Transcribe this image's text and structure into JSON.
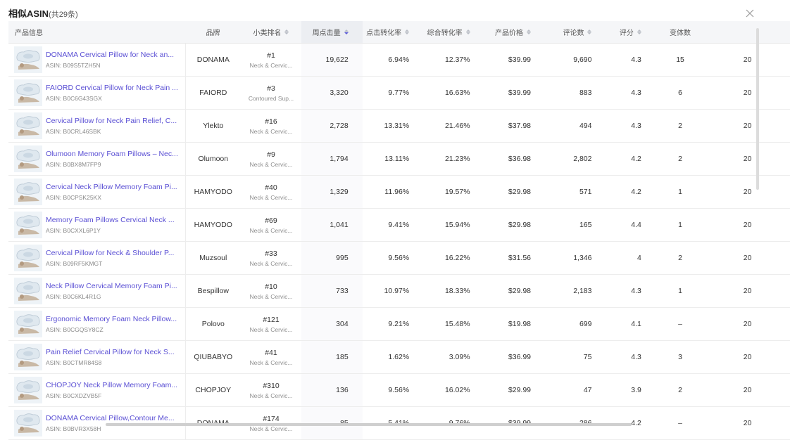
{
  "dialog": {
    "title": "相似ASIN",
    "count_text": "(共29条)",
    "close_icon": "close-icon"
  },
  "columns": {
    "product": "产品信息",
    "brand": "品牌",
    "rank": "小类排名",
    "weekly_clicks": "周点击量",
    "click_conv": "点击转化率",
    "total_conv": "综合转化率",
    "price": "产品价格",
    "reviews": "评论数",
    "rating": "评分",
    "variants": "变体数"
  },
  "sort": {
    "active_column": "weekly_clicks",
    "direction": "desc",
    "accent": "#5b5bd6"
  },
  "rows": [
    {
      "title": "DONAMA Cervical Pillow for Neck an...",
      "asin": "ASIN: B09S5TZH5N",
      "brand": "DONAMA",
      "rank": "#1",
      "category": "Neck & Cervic...",
      "clicks": "19,622",
      "click_conv": "6.94%",
      "total_conv": "12.37%",
      "price": "$39.99",
      "reviews": "9,690",
      "rating": "4.3",
      "variants": "15",
      "extra": "20"
    },
    {
      "title": "FAIORD Cervical Pillow for Neck Pain ...",
      "asin": "ASIN: B0C6G43SGX",
      "brand": "FAIORD",
      "rank": "#3",
      "category": "Contoured Sup...",
      "clicks": "3,320",
      "click_conv": "9.77%",
      "total_conv": "16.63%",
      "price": "$39.99",
      "reviews": "883",
      "rating": "4.3",
      "variants": "6",
      "extra": "20"
    },
    {
      "title": "Cervical Pillow for Neck Pain Relief, C...",
      "asin": "ASIN: B0CRL46SBK",
      "brand": "Ylekto",
      "rank": "#16",
      "category": "Neck & Cervic...",
      "clicks": "2,728",
      "click_conv": "13.31%",
      "total_conv": "21.46%",
      "price": "$37.98",
      "reviews": "494",
      "rating": "4.3",
      "variants": "2",
      "extra": "20"
    },
    {
      "title": "Olumoon Memory Foam Pillows – Nec...",
      "asin": "ASIN: B0BX8M7FP9",
      "brand": "Olumoon",
      "rank": "#9",
      "category": "Neck & Cervic...",
      "clicks": "1,794",
      "click_conv": "13.11%",
      "total_conv": "21.23%",
      "price": "$36.98",
      "reviews": "2,802",
      "rating": "4.2",
      "variants": "2",
      "extra": "20"
    },
    {
      "title": "Cervical Neck Pillow Memory Foam Pi...",
      "asin": "ASIN: B0CPSK25KX",
      "brand": "HAMYODO",
      "rank": "#40",
      "category": "Neck & Cervic...",
      "clicks": "1,329",
      "click_conv": "11.96%",
      "total_conv": "19.57%",
      "price": "$29.98",
      "reviews": "571",
      "rating": "4.2",
      "variants": "1",
      "extra": "20"
    },
    {
      "title": "Memory Foam Pillows Cervical Neck ...",
      "asin": "ASIN: B0CXXL6P1Y",
      "brand": "HAMYODO",
      "rank": "#69",
      "category": "Neck & Cervic...",
      "clicks": "1,041",
      "click_conv": "9.41%",
      "total_conv": "15.94%",
      "price": "$29.98",
      "reviews": "165",
      "rating": "4.4",
      "variants": "1",
      "extra": "20"
    },
    {
      "title": "Cervical Pillow for Neck & Shoulder P...",
      "asin": "ASIN: B09RF5KMGT",
      "brand": "Muzsoul",
      "rank": "#33",
      "category": "Neck & Cervic...",
      "clicks": "995",
      "click_conv": "9.56%",
      "total_conv": "16.22%",
      "price": "$31.56",
      "reviews": "1,346",
      "rating": "4",
      "variants": "2",
      "extra": "20"
    },
    {
      "title": "Neck Pillow Cervical Memory Foam Pi...",
      "asin": "ASIN: B0C6KL4R1G",
      "brand": "Bespillow",
      "rank": "#10",
      "category": "Neck & Cervic...",
      "clicks": "733",
      "click_conv": "10.97%",
      "total_conv": "18.33%",
      "price": "$29.98",
      "reviews": "2,183",
      "rating": "4.3",
      "variants": "1",
      "extra": "20"
    },
    {
      "title": "Ergonomic Memory Foam Neck Pillow...",
      "asin": "ASIN: B0CGQSY8CZ",
      "brand": "Polovo",
      "rank": "#121",
      "category": "Neck & Cervic...",
      "clicks": "304",
      "click_conv": "9.21%",
      "total_conv": "15.48%",
      "price": "$19.98",
      "reviews": "699",
      "rating": "4.1",
      "variants": "–",
      "extra": "20"
    },
    {
      "title": "Pain Relief Cervical Pillow for Neck S...",
      "asin": "ASIN: B0CTMR84S8",
      "brand": "QIUBABYO",
      "rank": "#41",
      "category": "Neck & Cervic...",
      "clicks": "185",
      "click_conv": "1.62%",
      "total_conv": "3.09%",
      "price": "$36.99",
      "reviews": "75",
      "rating": "4.3",
      "variants": "3",
      "extra": "20"
    },
    {
      "title": "CHOPJOY Neck Pillow Memory Foam...",
      "asin": "ASIN: B0CXDZVB5F",
      "brand": "CHOPJOY",
      "rank": "#310",
      "category": "Neck & Cervic...",
      "clicks": "136",
      "click_conv": "9.56%",
      "total_conv": "16.02%",
      "price": "$29.99",
      "reviews": "47",
      "rating": "3.9",
      "variants": "2",
      "extra": "20"
    },
    {
      "title": "DONAMA Cervical Pillow,Contour Me...",
      "asin": "ASIN: B0BVR3X58H",
      "brand": "DONAMA",
      "rank": "#174",
      "category": "Neck & Cervic...",
      "clicks": "85",
      "click_conv": "5.41%",
      "total_conv": "9.76%",
      "price": "$39.99",
      "reviews": "286",
      "rating": "4.2",
      "variants": "–",
      "extra": "20"
    }
  ]
}
